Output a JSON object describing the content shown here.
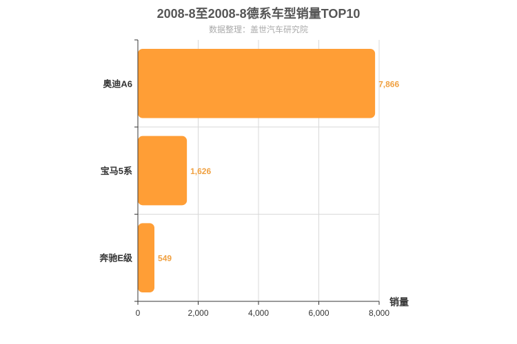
{
  "chart_data": {
    "type": "bar",
    "orientation": "horizontal",
    "title": "2008-8至2008-8德系车型销量TOP10",
    "subtitle": "数据整理：盖世汽车研究院",
    "categories": [
      "奥迪A6",
      "宝马5系",
      "奔驰E级"
    ],
    "values": [
      7866,
      1626,
      549
    ],
    "value_labels": [
      "7,866",
      "1,626",
      "549"
    ],
    "xlabel": "销量",
    "ylabel": "",
    "xlim": [
      0,
      8000
    ],
    "x_ticks": [
      0,
      2000,
      4000,
      6000,
      8000
    ],
    "x_tick_labels": [
      "0",
      "2,000",
      "4,000",
      "6,000",
      "8,000"
    ],
    "grid": true,
    "legend": "none",
    "colors": {
      "bar": "#ff9e36",
      "value_label": "#f0a040",
      "grid": "#d8d8d8",
      "axis": "#333333"
    }
  }
}
